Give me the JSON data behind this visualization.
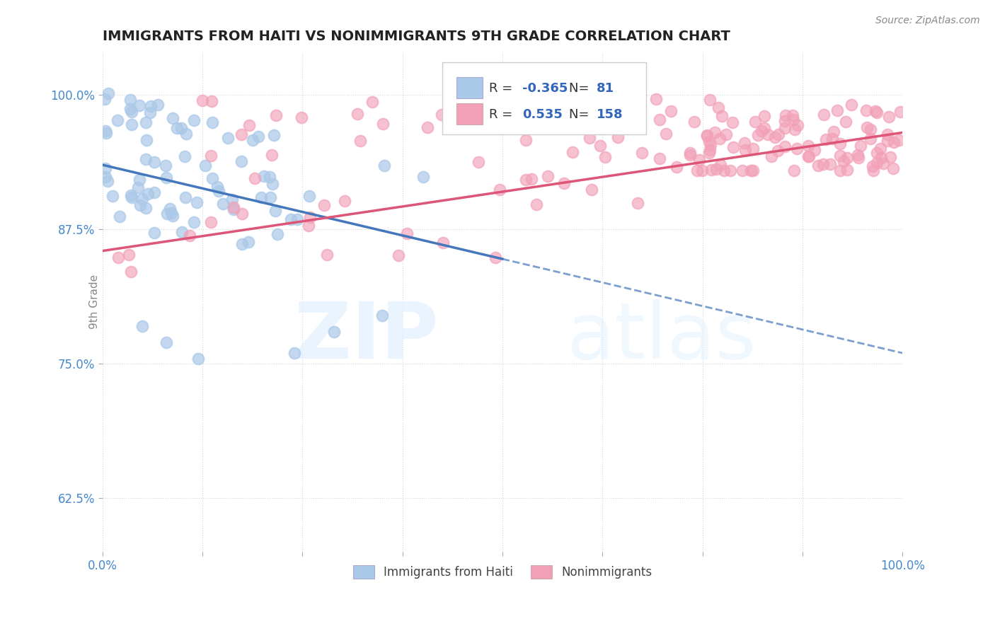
{
  "title": "IMMIGRANTS FROM HAITI VS NONIMMIGRANTS 9TH GRADE CORRELATION CHART",
  "source_text": "Source: ZipAtlas.com",
  "ylabel": "9th Grade",
  "xlim": [
    0.0,
    1.0
  ],
  "ylim": [
    0.575,
    1.04
  ],
  "yticks": [
    0.625,
    0.75,
    0.875,
    1.0
  ],
  "ytick_labels": [
    "62.5%",
    "75.0%",
    "87.5%",
    "100.0%"
  ],
  "xticks": [
    0.0,
    0.125,
    0.25,
    0.375,
    0.5,
    0.625,
    0.75,
    0.875,
    1.0
  ],
  "xtick_labels_show": [
    "0.0%",
    "",
    "",
    "",
    "",
    "",
    "",
    "",
    "100.0%"
  ],
  "blue_color": "#aac8e8",
  "pink_color": "#f2a0b8",
  "blue_line_color": "#4477bb",
  "pink_line_color": "#dd5577",
  "legend_label_blue": "Immigrants from Haiti",
  "legend_label_pink": "Nonimmigrants",
  "watermark_zip": "ZIP",
  "watermark_atlas": "atlas",
  "blue_R_str": "-0.365",
  "blue_N_str": "81",
  "pink_R_str": "0.535",
  "pink_N_str": "158",
  "legend_text_color": "#3366bb",
  "title_color": "#222222",
  "axis_tick_color": "#4488cc",
  "ylabel_color": "#888888",
  "source_color": "#888888",
  "grid_color": "#cccccc"
}
